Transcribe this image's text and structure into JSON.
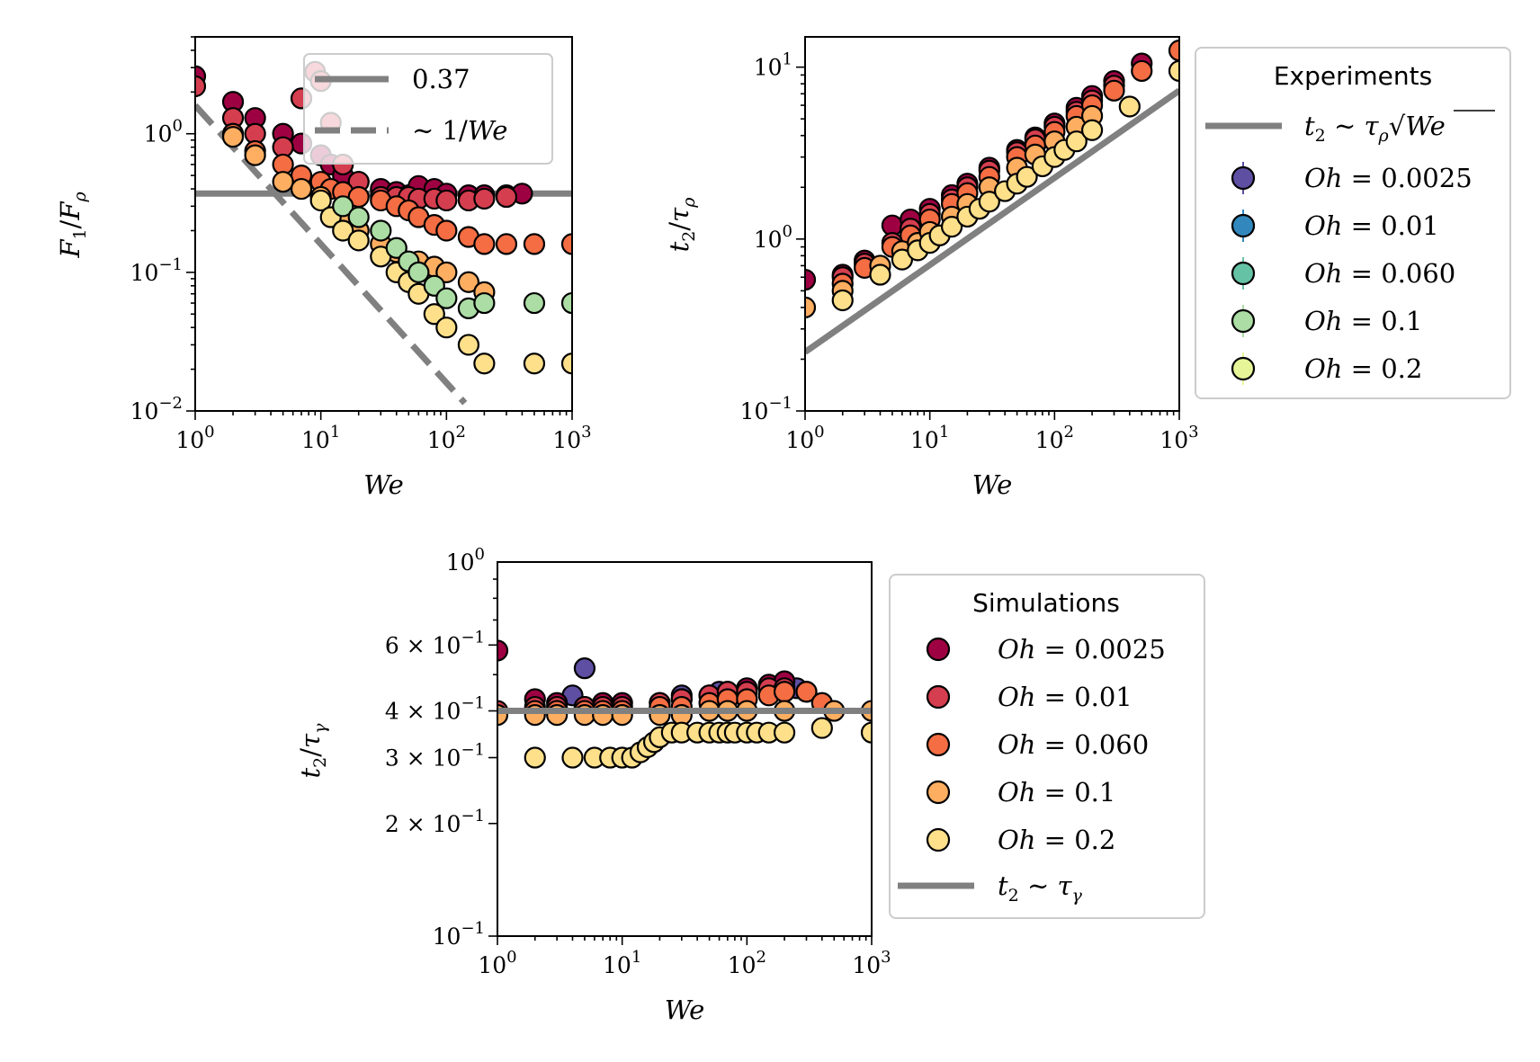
{
  "chart_data": [
    {
      "type": "scatter",
      "xlabel": "We",
      "ylabel": "F₁/F_ρ",
      "xscale": "log",
      "yscale": "log",
      "xlim": [
        1,
        1000
      ],
      "ylim": [
        0.01,
        5
      ],
      "xticks": [
        {
          "v": 1,
          "b": "10",
          "e": "0"
        },
        {
          "v": 10,
          "b": "10",
          "e": "1"
        },
        {
          "v": 100,
          "b": "10",
          "e": "2"
        },
        {
          "v": 1000,
          "b": "10",
          "e": "3"
        }
      ],
      "yticks": [
        {
          "v": 0.01,
          "b": "10",
          "e": "−2"
        },
        {
          "v": 0.1,
          "b": "10",
          "e": "−1"
        },
        {
          "v": 1,
          "b": "10",
          "e": "0"
        }
      ],
      "legend": {
        "position": "upper-right",
        "entries": [
          {
            "label": "0.37",
            "style": "solid"
          },
          {
            "label": "∼ 1/We",
            "style": "dashed"
          }
        ]
      },
      "lines": [
        {
          "style": "solid",
          "x": [
            1,
            1000
          ],
          "y": [
            0.37,
            0.37
          ]
        },
        {
          "style": "dashed",
          "x": [
            1,
            140
          ],
          "y": [
            1.6,
            0.0114
          ]
        }
      ],
      "series": [
        {
          "oh": "0.0025",
          "x": [
            1,
            2,
            3,
            5,
            7,
            10,
            12,
            15,
            20,
            30,
            40,
            50,
            60,
            80,
            100,
            150,
            200,
            300,
            400
          ],
          "y": [
            2.6,
            1.7,
            1.3,
            1.0,
            0.85,
            0.7,
            0.6,
            0.5,
            0.45,
            0.4,
            0.38,
            0.36,
            0.42,
            0.4,
            0.37,
            0.36,
            0.36,
            0.36,
            0.37
          ]
        },
        {
          "oh": "0.01",
          "x": [
            1,
            2,
            3,
            5,
            7,
            9,
            10,
            12,
            15,
            20,
            30,
            40,
            50,
            60,
            80,
            100,
            150,
            200,
            300
          ],
          "y": [
            2.2,
            1.3,
            1.0,
            0.8,
            1.8,
            2.8,
            2.4,
            1.2,
            0.6,
            0.45,
            0.35,
            0.35,
            0.35,
            0.34,
            0.34,
            0.33,
            0.33,
            0.34,
            0.35
          ]
        },
        {
          "oh": "0.060",
          "x": [
            2,
            3,
            5,
            7,
            10,
            12,
            15,
            20,
            30,
            40,
            50,
            60,
            80,
            100,
            150,
            200,
            300,
            500,
            1000
          ],
          "y": [
            1.0,
            0.75,
            0.6,
            0.5,
            0.45,
            0.4,
            0.38,
            0.35,
            0.33,
            0.3,
            0.28,
            0.25,
            0.22,
            0.2,
            0.18,
            0.16,
            0.16,
            0.16,
            0.16
          ]
        },
        {
          "oh": "0.1",
          "x": [
            2,
            3,
            5,
            7,
            10,
            15,
            20,
            30,
            40,
            60,
            80,
            100,
            150,
            200
          ],
          "y": [
            0.95,
            0.7,
            0.45,
            0.4,
            0.35,
            0.25,
            0.2,
            0.16,
            0.14,
            0.12,
            0.11,
            0.1,
            0.085,
            0.072
          ]
        },
        {
          "oh": "0.2",
          "x": [
            10,
            12,
            15,
            20,
            30,
            40,
            50,
            60,
            80,
            100,
            150,
            200,
            500,
            1000
          ],
          "y": [
            0.33,
            0.25,
            0.2,
            0.17,
            0.13,
            0.1,
            0.085,
            0.07,
            0.05,
            0.04,
            0.03,
            0.022,
            0.022,
            0.022
          ]
        },
        {
          "oh": "0.2b",
          "x": [
            15,
            20,
            30,
            40,
            50,
            60,
            80,
            100,
            150,
            200,
            500,
            1000
          ],
          "y": [
            0.3,
            0.25,
            0.2,
            0.15,
            0.12,
            0.1,
            0.08,
            0.065,
            0.055,
            0.06,
            0.06,
            0.06
          ]
        }
      ]
    },
    {
      "type": "scatter",
      "xlabel": "We",
      "ylabel": "t₂/τ_ρ",
      "xscale": "log",
      "yscale": "log",
      "xlim": [
        1,
        1000
      ],
      "ylim": [
        0.1,
        15
      ],
      "xticks": [
        {
          "v": 1,
          "b": "10",
          "e": "0"
        },
        {
          "v": 10,
          "b": "10",
          "e": "1"
        },
        {
          "v": 100,
          "b": "10",
          "e": "2"
        },
        {
          "v": 1000,
          "b": "10",
          "e": "3"
        }
      ],
      "yticks": [
        {
          "v": 0.1,
          "b": "10",
          "e": "−1"
        },
        {
          "v": 1,
          "b": "10",
          "e": "0"
        },
        {
          "v": 10,
          "b": "10",
          "e": "1"
        }
      ],
      "legend": {
        "title": "Experiments",
        "position": "outside-right",
        "entries": [
          {
            "label": "t₂ ∼ τ_ρ√We",
            "style": "solid"
          },
          {
            "label": "Oh = 0.0025",
            "color": "#5e4fa2"
          },
          {
            "label": "Oh = 0.01",
            "color": "#3288bd"
          },
          {
            "label": "Oh = 0.060",
            "color": "#66c2a5"
          },
          {
            "label": "Oh = 0.1",
            "color": "#abdda4"
          },
          {
            "label": "Oh = 0.2",
            "color": "#e6f598"
          }
        ]
      },
      "lines": [
        {
          "style": "solid",
          "x": [
            1,
            1000
          ],
          "y": [
            0.22,
            7.3
          ]
        }
      ],
      "series": [
        {
          "oh": "0.0025",
          "x": [
            1,
            2,
            3,
            5,
            7,
            10,
            15,
            20,
            30,
            50,
            70,
            100,
            150,
            200,
            300,
            500
          ],
          "y": [
            0.58,
            0.62,
            0.75,
            1.2,
            1.3,
            1.5,
            1.8,
            2.1,
            2.6,
            3.3,
            3.9,
            4.7,
            5.8,
            6.8,
            8.3,
            10.5
          ]
        },
        {
          "oh": "0.01",
          "x": [
            2,
            3,
            5,
            7,
            10,
            15,
            20,
            30,
            50,
            70,
            100,
            150,
            200,
            300
          ],
          "y": [
            0.6,
            0.72,
            0.95,
            1.15,
            1.4,
            1.7,
            2.0,
            2.5,
            3.2,
            3.8,
            4.5,
            5.5,
            6.4,
            7.8
          ]
        },
        {
          "oh": "0.060",
          "x": [
            2,
            3,
            5,
            7,
            10,
            15,
            20,
            30,
            50,
            70,
            100,
            150,
            200,
            300,
            500,
            1000
          ],
          "y": [
            0.55,
            0.68,
            0.9,
            1.05,
            1.3,
            1.6,
            1.85,
            2.3,
            3.0,
            3.5,
            4.2,
            5.2,
            6.0,
            7.3,
            9.5,
            12.5
          ]
        },
        {
          "oh": "0.1",
          "x": [
            1,
            2,
            4,
            6,
            8,
            10,
            15,
            20,
            30,
            50,
            70,
            100,
            150,
            200
          ],
          "y": [
            0.4,
            0.5,
            0.7,
            0.85,
            0.95,
            1.1,
            1.35,
            1.6,
            2.0,
            2.6,
            3.1,
            3.7,
            4.5,
            5.2
          ]
        },
        {
          "oh": "0.2",
          "x": [
            2,
            4,
            6,
            8,
            10,
            12,
            15,
            20,
            25,
            30,
            40,
            50,
            60,
            80,
            100,
            120,
            150,
            200,
            400,
            1000
          ],
          "y": [
            0.44,
            0.62,
            0.76,
            0.86,
            0.95,
            1.05,
            1.18,
            1.35,
            1.5,
            1.65,
            1.9,
            2.1,
            2.3,
            2.65,
            3.0,
            3.3,
            3.7,
            4.3,
            5.9,
            9.5
          ]
        }
      ]
    },
    {
      "type": "scatter",
      "xlabel": "We",
      "ylabel": "t₂/τ_γ",
      "xscale": "log",
      "yscale": "log",
      "xlim": [
        1,
        1000
      ],
      "ylim": [
        0.1,
        1
      ],
      "xticks": [
        {
          "v": 1,
          "b": "10",
          "e": "0"
        },
        {
          "v": 10,
          "b": "10",
          "e": "1"
        },
        {
          "v": 100,
          "b": "10",
          "e": "2"
        },
        {
          "v": 1000,
          "b": "10",
          "e": "3"
        }
      ],
      "yticks": [
        {
          "v": 0.1,
          "b": "10",
          "e": "−1"
        },
        {
          "v": 0.2,
          "m": "2 ×",
          "b": "10",
          "e": "−1"
        },
        {
          "v": 0.3,
          "m": "3 ×",
          "b": "10",
          "e": "−1"
        },
        {
          "v": 0.4,
          "m": "4 ×",
          "b": "10",
          "e": "−1"
        },
        {
          "v": 0.6,
          "m": "6 ×",
          "b": "10",
          "e": "−1"
        },
        {
          "v": 1,
          "b": "10",
          "e": "0"
        }
      ],
      "legend": {
        "title": "Simulations",
        "position": "outside-right",
        "entries": [
          {
            "label": "Oh = 0.0025",
            "color": "#9e0142"
          },
          {
            "label": "Oh = 0.01",
            "color": "#d53e4f"
          },
          {
            "label": "Oh = 0.060",
            "color": "#f46d43"
          },
          {
            "label": "Oh = 0.1",
            "color": "#fdae61"
          },
          {
            "label": "Oh = 0.2",
            "color": "#fee08b"
          },
          {
            "label": "t₂ ∼ τ_γ",
            "style": "solid"
          }
        ]
      },
      "lines": [
        {
          "style": "solid",
          "x": [
            1,
            1000
          ],
          "y": [
            0.4,
            0.4
          ]
        }
      ],
      "series": [
        {
          "oh": "exp",
          "x": [
            4,
            5,
            30,
            60,
            150,
            200,
            250
          ],
          "y": [
            0.44,
            0.52,
            0.44,
            0.45,
            0.46,
            0.47,
            0.46
          ]
        },
        {
          "oh": "0.0025",
          "x": [
            1,
            2,
            3,
            5,
            7,
            10,
            20,
            30,
            50,
            70,
            100,
            150,
            200
          ],
          "y": [
            0.58,
            0.43,
            0.42,
            0.41,
            0.42,
            0.42,
            0.42,
            0.43,
            0.44,
            0.45,
            0.46,
            0.47,
            0.48
          ]
        },
        {
          "oh": "0.01",
          "x": [
            1,
            2,
            3,
            5,
            7,
            10,
            20,
            30,
            50,
            70,
            100,
            150,
            200,
            300
          ],
          "y": [
            0.4,
            0.41,
            0.41,
            0.41,
            0.41,
            0.41,
            0.42,
            0.43,
            0.44,
            0.45,
            0.45,
            0.46,
            0.46,
            0.45
          ]
        },
        {
          "oh": "0.060",
          "x": [
            2,
            3,
            5,
            7,
            10,
            20,
            30,
            50,
            70,
            100,
            150,
            200,
            300,
            400
          ],
          "y": [
            0.4,
            0.4,
            0.4,
            0.4,
            0.4,
            0.41,
            0.41,
            0.42,
            0.43,
            0.43,
            0.44,
            0.45,
            0.45,
            0.42
          ]
        },
        {
          "oh": "0.1",
          "x": [
            1,
            2,
            3,
            5,
            7,
            10,
            20,
            30,
            50,
            70,
            100,
            200,
            500,
            1000
          ],
          "y": [
            0.39,
            0.39,
            0.39,
            0.39,
            0.39,
            0.39,
            0.39,
            0.39,
            0.4,
            0.4,
            0.4,
            0.4,
            0.4,
            0.4
          ]
        },
        {
          "oh": "0.2",
          "x": [
            2,
            4,
            6,
            8,
            10,
            12,
            14,
            16,
            18,
            20,
            25,
            30,
            40,
            50,
            60,
            70,
            80,
            100,
            120,
            150,
            200,
            400,
            1000
          ],
          "y": [
            0.3,
            0.3,
            0.3,
            0.3,
            0.3,
            0.3,
            0.31,
            0.32,
            0.33,
            0.34,
            0.35,
            0.35,
            0.35,
            0.35,
            0.35,
            0.35,
            0.35,
            0.35,
            0.35,
            0.35,
            0.35,
            0.36,
            0.35
          ]
        }
      ]
    }
  ],
  "colors": {
    "sim_0.0025": "#9e0142",
    "sim_0.01": "#d53e4f",
    "sim_0.060": "#f46d43",
    "sim_0.1": "#fdae61",
    "sim_0.2": "#fee08b",
    "exp_0.0025": "#5e4fa2",
    "exp_0.01": "#3288bd",
    "exp_0.060": "#66c2a5",
    "exp_0.1": "#abdda4",
    "exp_0.2": "#e6f598",
    "line": "#808080"
  }
}
